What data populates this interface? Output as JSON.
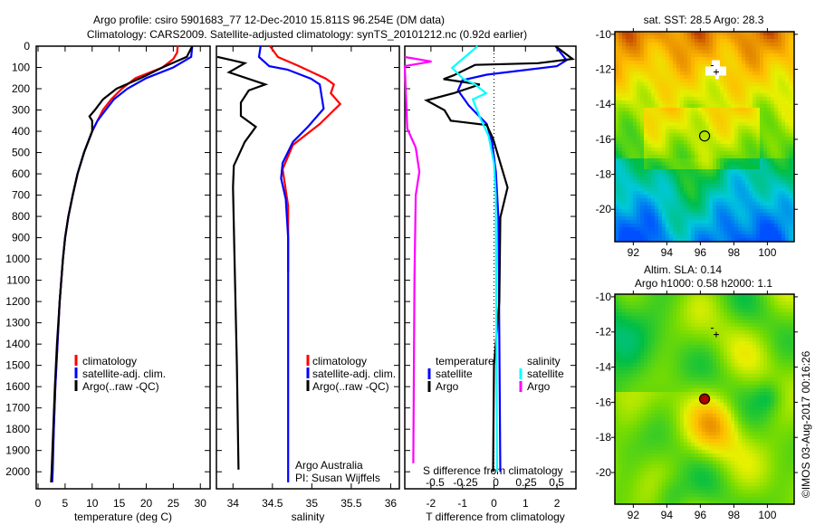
{
  "title": {
    "line1": "Argo profile: csiro 5901683_77 12-Dec-2010 15.811S 96.254E (DM data)",
    "line2": "Climatology: CARS2009. Satellite-adjusted climatology: synTS_20101212.nc (0.92d earlier)"
  },
  "copyright": "©IMOS 03-Aug-2017 00:16:26",
  "colors": {
    "climatology": "#ff0000",
    "satellite": "#0000ff",
    "argo": "#000000",
    "sal_satellite": "#00ffff",
    "sal_argo": "#ff00ff"
  },
  "chart_data": [
    {
      "type": "line",
      "name": "temperature",
      "xlabel": "temperature (deg C)",
      "ylabel": "",
      "xlim": [
        -0.34,
        31.8
      ],
      "ylim": [
        2080,
        0
      ],
      "xticks": [
        0,
        5,
        10,
        15,
        20,
        25,
        30
      ],
      "yticks": [
        0,
        100,
        200,
        300,
        400,
        500,
        600,
        700,
        800,
        900,
        1000,
        1100,
        1200,
        1300,
        1400,
        1500,
        1600,
        1700,
        1800,
        1900,
        2000
      ],
      "legend": [
        "climatology",
        "satellite-adj. clim.",
        "Argo(..raw -QC)"
      ],
      "series": [
        {
          "name": "climatology",
          "color": "#ff0000",
          "points": [
            [
              25.8,
              0
            ],
            [
              25.7,
              30
            ],
            [
              25,
              60
            ],
            [
              23,
              100
            ],
            [
              18,
              150
            ],
            [
              15.5,
              200
            ],
            [
              13.5,
              250
            ],
            [
              12,
              300
            ],
            [
              11,
              350
            ],
            [
              10,
              400
            ],
            [
              8.5,
              500
            ],
            [
              7.3,
              600
            ],
            [
              6.4,
              700
            ],
            [
              5.6,
              800
            ],
            [
              5,
              900
            ],
            [
              4.6,
              1000
            ],
            [
              4,
              1200
            ],
            [
              3.6,
              1400
            ],
            [
              3.2,
              1600
            ],
            [
              2.9,
              1800
            ],
            [
              2.6,
              2000
            ],
            [
              2.5,
              2050
            ]
          ]
        },
        {
          "name": "satellite-adj. clim.",
          "color": "#0000ff",
          "points": [
            [
              28.5,
              0
            ],
            [
              28.3,
              50
            ],
            [
              25,
              100
            ],
            [
              20,
              150
            ],
            [
              16.5,
              200
            ],
            [
              14,
              250
            ],
            [
              12.5,
              300
            ],
            [
              11,
              350
            ],
            [
              10,
              400
            ],
            [
              8.5,
              500
            ],
            [
              7.3,
              600
            ],
            [
              6.4,
              700
            ],
            [
              5.6,
              800
            ],
            [
              5,
              900
            ],
            [
              4.6,
              1000
            ],
            [
              4,
              1200
            ],
            [
              3.6,
              1400
            ],
            [
              3.2,
              1600
            ],
            [
              2.9,
              1800
            ],
            [
              2.7,
              2000
            ],
            [
              2.6,
              2050
            ]
          ]
        },
        {
          "name": "Argo(..raw -QC)",
          "color": "#000000",
          "points": [
            [
              28.5,
              0
            ],
            [
              27.5,
              50
            ],
            [
              23,
              100
            ],
            [
              19,
              150
            ],
            [
              14.5,
              200
            ],
            [
              12,
              250
            ],
            [
              10.5,
              300
            ],
            [
              9.5,
              330
            ],
            [
              10,
              350
            ],
            [
              10,
              400
            ],
            [
              8.5,
              500
            ],
            [
              7.3,
              600
            ],
            [
              6.4,
              700
            ],
            [
              5.6,
              800
            ],
            [
              5,
              900
            ],
            [
              4.6,
              1000
            ],
            [
              4,
              1200
            ],
            [
              3.5,
              1400
            ],
            [
              3.1,
              1600
            ],
            [
              2.8,
              1800
            ],
            [
              2.5,
              2000
            ],
            [
              2.4,
              2050
            ]
          ]
        }
      ]
    },
    {
      "type": "line",
      "name": "salinity",
      "xlabel": "salinity",
      "xlim": [
        33.79,
        36.11
      ],
      "ylim": [
        2080,
        0
      ],
      "xticks": [
        34,
        34.5,
        35,
        35.5,
        36
      ],
      "legend": [
        "climatology",
        "satellite-adj. clim.",
        "Argo(..raw -QC)"
      ],
      "annotation": [
        "Argo Australia",
        "PI: Susan Wijffels"
      ],
      "series": [
        {
          "name": "climatology",
          "color": "#ff0000",
          "points": [
            [
              34.47,
              0
            ],
            [
              34.57,
              51
            ],
            [
              34.84,
              94
            ],
            [
              35.18,
              153
            ],
            [
              35.28,
              180
            ],
            [
              35.24,
              221
            ],
            [
              35.36,
              272
            ],
            [
              35.1,
              366
            ],
            [
              34.76,
              464
            ],
            [
              34.63,
              578
            ],
            [
              34.7,
              750
            ],
            [
              34.7,
              1060
            ]
          ]
        },
        {
          "name": "satellite-adj. clim.",
          "color": "#0000ff",
          "points": [
            [
              34.35,
              0
            ],
            [
              34.33,
              51
            ],
            [
              34.46,
              94
            ],
            [
              34.69,
              110
            ],
            [
              34.99,
              153
            ],
            [
              35.1,
              180
            ],
            [
              35.15,
              294
            ],
            [
              34.95,
              379
            ],
            [
              34.76,
              450
            ],
            [
              34.63,
              549
            ],
            [
              34.61,
              621
            ],
            [
              34.67,
              719
            ],
            [
              34.7,
              900
            ],
            [
              34.7,
              2050
            ]
          ]
        },
        {
          "name": "Argo(..raw -QC)",
          "color": "#000000",
          "points": [
            [
              33.8,
              50
            ],
            [
              34.15,
              80
            ],
            [
              33.95,
              123
            ],
            [
              34.41,
              180
            ],
            [
              34.2,
              208
            ],
            [
              34.1,
              265
            ],
            [
              34.1,
              328
            ],
            [
              34.29,
              379
            ],
            [
              34.15,
              450
            ],
            [
              34.01,
              562
            ],
            [
              34.0,
              664
            ],
            [
              34.02,
              1000
            ],
            [
              34.05,
              1500
            ],
            [
              34.07,
              1990
            ]
          ]
        }
      ]
    },
    {
      "type": "line",
      "name": "difference",
      "xlabel": "T difference from climatology",
      "xlabel2": "S difference from climatology",
      "xlim": [
        -2.83,
        2.6
      ],
      "xlim_S": [
        -0.75,
        0.66
      ],
      "ylim": [
        2080,
        0
      ],
      "xticks": [
        -2,
        -1,
        0,
        1,
        2
      ],
      "xticks_S": [
        "-0.5",
        "-0.25",
        "0",
        "0.25",
        "0.5"
      ],
      "legend": {
        "temperature": "temperature",
        "salinity": "salinity",
        "satellite": "satellite",
        "argo": "Argo"
      },
      "series": [
        {
          "name": "T satellite",
          "axis": "T",
          "color": "#0000ff",
          "points": [
            [
              1.95,
              0
            ],
            [
              2.3,
              66
            ],
            [
              2.0,
              94
            ],
            [
              -0.23,
              134
            ],
            [
              -1.0,
              160
            ],
            [
              -1.14,
              208
            ],
            [
              -0.8,
              279
            ],
            [
              -0.23,
              366
            ],
            [
              -0.06,
              450
            ],
            [
              0.06,
              592
            ],
            [
              0.14,
              805
            ],
            [
              0.2,
              2000
            ]
          ]
        },
        {
          "name": "T Argo",
          "axis": "T",
          "color": "#000000",
          "points": [
            [
              1.95,
              0
            ],
            [
              2.49,
              60
            ],
            [
              1.4,
              80
            ],
            [
              -0.6,
              88
            ],
            [
              -1.28,
              137
            ],
            [
              -1.6,
              155
            ],
            [
              -0.45,
              180
            ],
            [
              -1.28,
              221
            ],
            [
              -2.14,
              255
            ],
            [
              -1.57,
              301
            ],
            [
              -1.37,
              350
            ],
            [
              -0.23,
              371
            ],
            [
              -0.03,
              435
            ],
            [
              0.43,
              664
            ],
            [
              0.2,
              805
            ],
            [
              0.17,
              1200
            ],
            [
              0,
              1500
            ],
            [
              -0.03,
              2000
            ]
          ]
        },
        {
          "name": "S satellite",
          "axis": "S",
          "color": "#00ffff",
          "points": [
            [
              -0.15,
              0
            ],
            [
              -0.36,
              102
            ],
            [
              -0.27,
              153
            ],
            [
              -0.17,
              180
            ],
            [
              -0.08,
              221
            ],
            [
              -0.19,
              250
            ],
            [
              -0.13,
              336
            ],
            [
              -0.06,
              421
            ],
            [
              -0.015,
              549
            ],
            [
              0,
              700
            ],
            [
              0.01,
              2000
            ]
          ]
        },
        {
          "name": "S Argo",
          "axis": "S",
          "color": "#ff00ff",
          "points": [
            [
              -0.75,
              51
            ],
            [
              -0.53,
              72
            ],
            [
              -0.75,
              94
            ],
            [
              -0.73,
              387
            ],
            [
              -0.66,
              477
            ],
            [
              -0.63,
              590
            ],
            [
              -0.66,
              700
            ],
            [
              -0.67,
              1089
            ],
            [
              -0.68,
              1960
            ]
          ]
        }
      ]
    },
    {
      "type": "heatmap",
      "name": "sst-map",
      "title": "sat. SST: 28.5 Argo: 28.3",
      "xlim": [
        90.9,
        101.6
      ],
      "ylim": [
        -21.85,
        -9.85
      ],
      "xticks": [
        92,
        94,
        96,
        98,
        100
      ],
      "yticks": [
        -10,
        -12,
        -14,
        -16,
        -18,
        -20
      ],
      "profile": [
        96.254,
        -15.811
      ]
    },
    {
      "type": "heatmap",
      "name": "sla-map",
      "title": "Altim. SLA: 0.14",
      "subtitle": "Argo h1000: 0.58 h2000: 1.1",
      "xlim": [
        90.9,
        101.6
      ],
      "ylim": [
        -21.8,
        -9.85
      ],
      "xticks": [
        92,
        94,
        96,
        98,
        100
      ],
      "yticks": [
        -10,
        -12,
        -14,
        -16,
        -18,
        -20
      ],
      "profile": [
        96.254,
        -15.811
      ]
    }
  ]
}
